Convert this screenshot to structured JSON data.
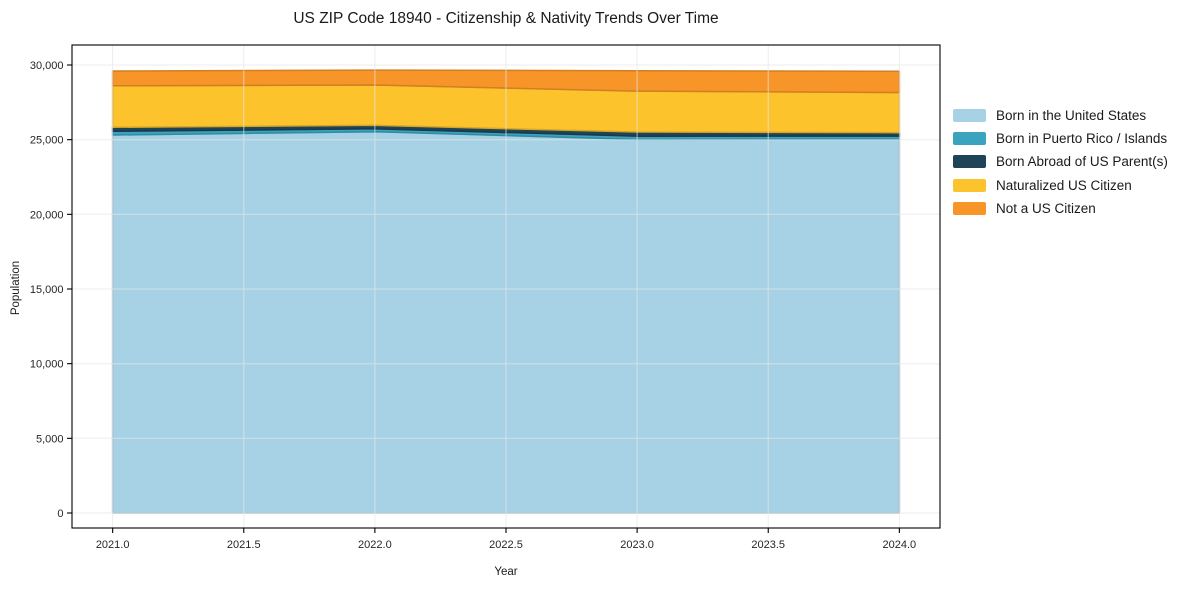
{
  "chart_data": {
    "type": "area",
    "stacked": true,
    "title": "US ZIP Code 18940 - Citizenship & Nativity Trends Over Time",
    "xlabel": "Year",
    "ylabel": "Population",
    "x": [
      2021,
      2022,
      2023,
      2024
    ],
    "series": [
      {
        "name": "Born in the United States",
        "color": "#a7d2e5",
        "values": [
          25310,
          25530,
          25020,
          25040
        ]
      },
      {
        "name": "Born in Puerto Rico / Islands",
        "color": "#3aa4bf",
        "values": [
          250,
          200,
          210,
          200
        ]
      },
      {
        "name": "Born Abroad of US Parent(s)",
        "color": "#1f4357",
        "values": [
          270,
          230,
          280,
          225
        ]
      },
      {
        "name": "Naturalized US Citizen",
        "color": "#fcc32d",
        "values": [
          2780,
          2700,
          2740,
          2690
        ]
      },
      {
        "name": "Not a US Citizen",
        "color": "#f79528",
        "values": [
          990,
          1000,
          1370,
          1420
        ]
      }
    ],
    "xticks": [
      2021.0,
      2021.5,
      2022.0,
      2022.5,
      2023.0,
      2023.5,
      2024.0
    ],
    "xtick_labels": [
      "2021.0",
      "2021.5",
      "2022.0",
      "2022.5",
      "2023.0",
      "2023.5",
      "2024.0"
    ],
    "yticks": [
      0,
      5000,
      10000,
      15000,
      20000,
      25000,
      30000
    ],
    "ytick_labels": [
      "0",
      "5,000",
      "10,000",
      "15,000",
      "20,000",
      "25,000",
      "30,000"
    ],
    "xlim": [
      2020.845,
      2024.155
    ],
    "ylim": [
      -1004,
      31339
    ],
    "grid": true,
    "grid_color": "#e6e6e6",
    "axis_color": "#000000",
    "tick_text_color": "#262626",
    "legend_position": "right",
    "legend_frame": false
  }
}
